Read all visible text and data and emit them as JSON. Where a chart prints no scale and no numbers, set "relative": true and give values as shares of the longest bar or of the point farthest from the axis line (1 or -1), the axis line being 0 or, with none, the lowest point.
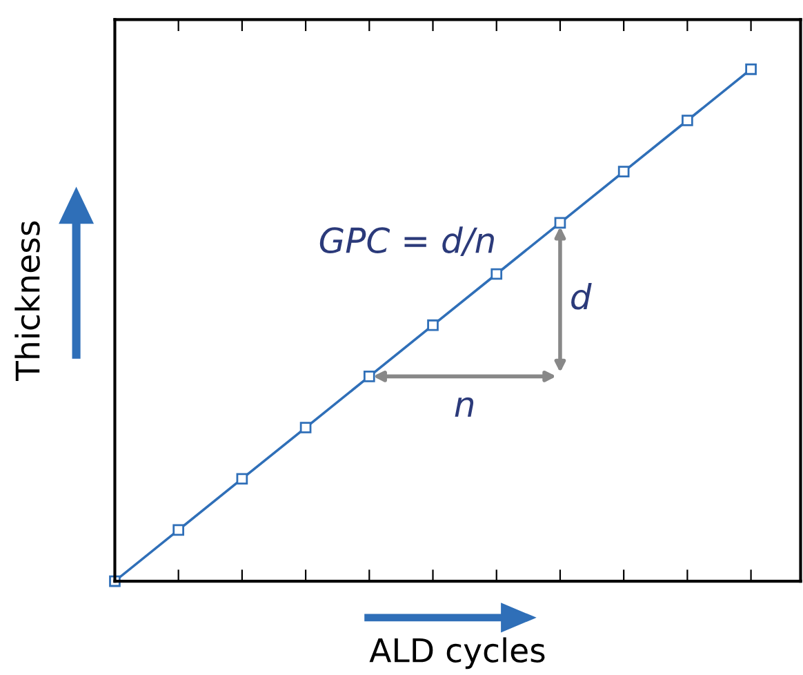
{
  "chart_data": {
    "type": "line",
    "relative": true,
    "xlabel": "ALD cycles",
    "ylabel": "Thickness",
    "categories": [
      null,
      null,
      null,
      null,
      null,
      null,
      null,
      null,
      null,
      null,
      null
    ],
    "series": [
      {
        "color": "#2f6fb8",
        "values": [
          0,
          0.1,
          0.2,
          0.3,
          0.4,
          0.5,
          0.6,
          0.7,
          0.8,
          0.9,
          1.0
        ]
      }
    ],
    "marker": "square",
    "line_style": "solid",
    "grid": false,
    "annotations": [
      "GPC = d/n",
      "d",
      "n"
    ]
  }
}
